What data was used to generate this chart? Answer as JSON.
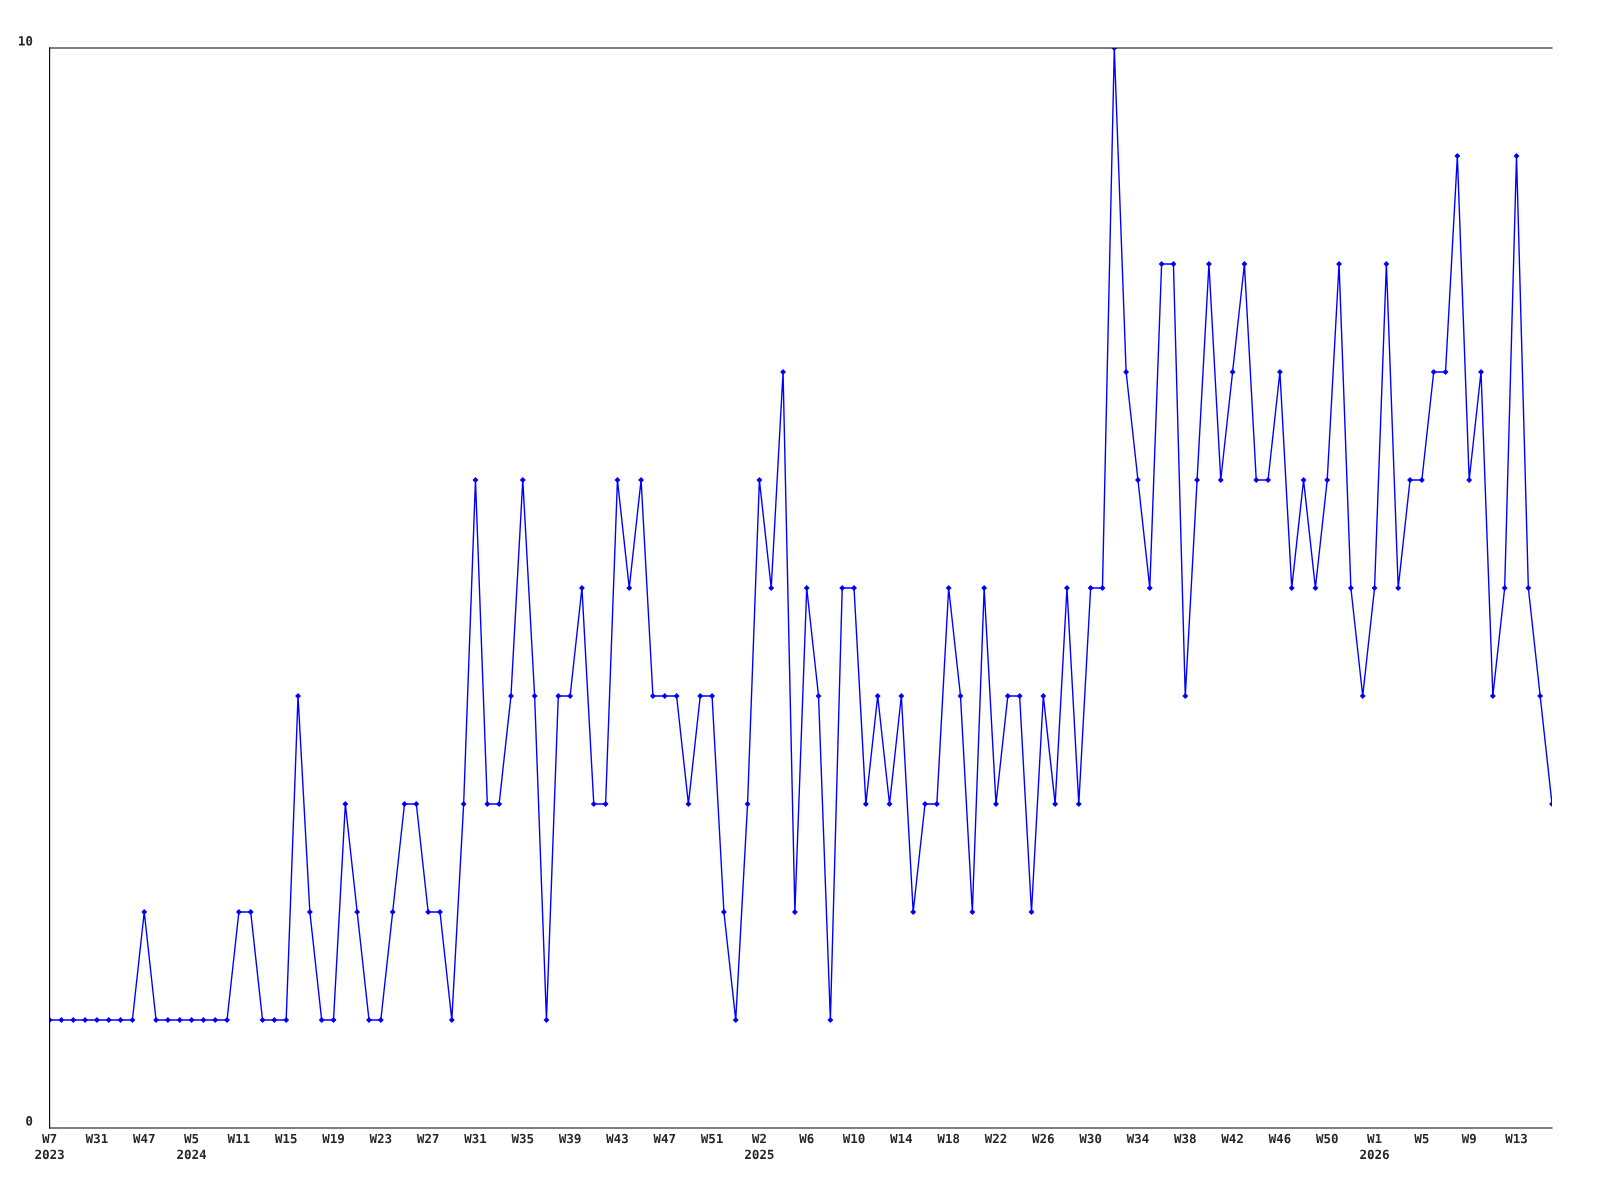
{
  "chart_data": {
    "type": "line",
    "categories": [
      "W7\n2023",
      null,
      null,
      null,
      "W31",
      null,
      null,
      null,
      "W47",
      null,
      null,
      null,
      "W5\n2024",
      null,
      null,
      null,
      "W11",
      null,
      null,
      null,
      "W15",
      null,
      null,
      null,
      "W19",
      null,
      null,
      null,
      "W23",
      null,
      null,
      null,
      "W27",
      null,
      null,
      null,
      "W31",
      null,
      null,
      null,
      "W35",
      null,
      null,
      null,
      "W39",
      null,
      null,
      null,
      "W43",
      null,
      null,
      null,
      "W47",
      null,
      null,
      null,
      "W51",
      null,
      null,
      null,
      "W2\n2025",
      null,
      null,
      null,
      "W6",
      null,
      null,
      null,
      "W10",
      null,
      null,
      null,
      "W14",
      null,
      null,
      null,
      "W18",
      null,
      null,
      null,
      "W22",
      null,
      null,
      null,
      "W26",
      null,
      null,
      null,
      "W30",
      null,
      null,
      null,
      "W34",
      null,
      null,
      null,
      "W38",
      null,
      null,
      null,
      "W42",
      null,
      null,
      null,
      "W46",
      null,
      null,
      null,
      "W50",
      null,
      null,
      null,
      "W1\n2026",
      null,
      null,
      null,
      "W5",
      null,
      null,
      null,
      "W9",
      null,
      null,
      null,
      "W13",
      null,
      null,
      null
    ],
    "series": [
      {
        "color": "#0000ff",
        "values": [
          1,
          1,
          1,
          1,
          1,
          1,
          1,
          1,
          2,
          1,
          1,
          1,
          1,
          1,
          1,
          1,
          2,
          2,
          1,
          1,
          1,
          4,
          2,
          1,
          1,
          3,
          2,
          1,
          1,
          2,
          3,
          3,
          2,
          2,
          1,
          3,
          6,
          3,
          3,
          4,
          6,
          4,
          1,
          4,
          4,
          5,
          3,
          3,
          6,
          5,
          6,
          4,
          4,
          4,
          3,
          4,
          4,
          2,
          1,
          3,
          6,
          5,
          7,
          2,
          5,
          4,
          1,
          5,
          5,
          3,
          4,
          3,
          4,
          2,
          3,
          3,
          5,
          4,
          2,
          5,
          3,
          4,
          4,
          2,
          4,
          3,
          5,
          3,
          5,
          5,
          10,
          7,
          6,
          5,
          8,
          8,
          4,
          6,
          8,
          6,
          7,
          8,
          6,
          6,
          7,
          5,
          6,
          5,
          6,
          8,
          5,
          4,
          5,
          8,
          5,
          6,
          6,
          7,
          7,
          9,
          6,
          7,
          4,
          5,
          9,
          5,
          4,
          3
        ]
      }
    ],
    "ylim": [
      0,
      10
    ],
    "yticks": [
      0,
      10
    ],
    "marker": "diamond",
    "line_style": "solid",
    "grid": false,
    "legend": false
  }
}
